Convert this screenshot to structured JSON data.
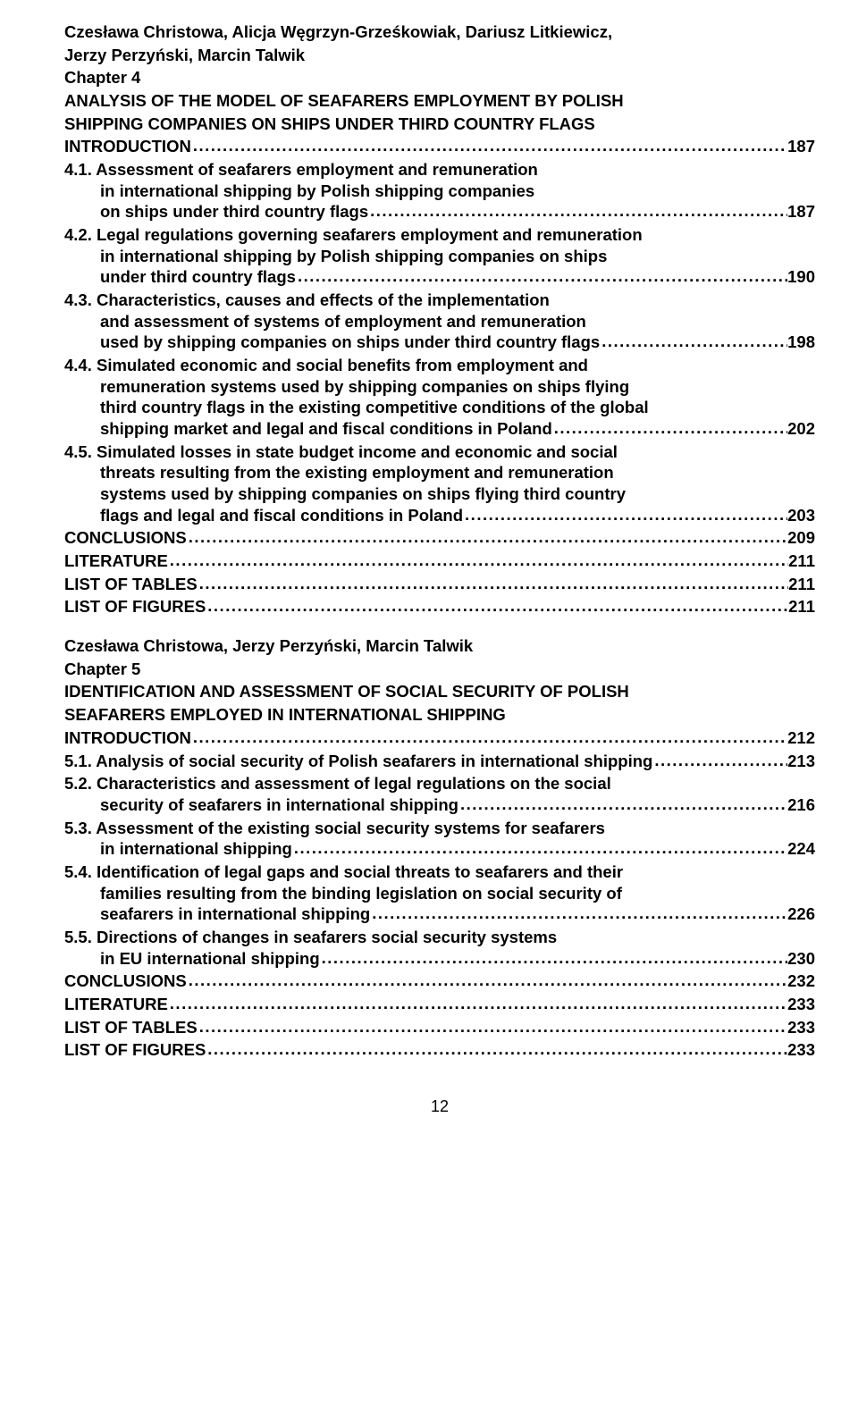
{
  "page_number": "12",
  "chapter4": {
    "authors_line1": "Czesława Christowa, Alicja Węgrzyn-Grześkowiak, Dariusz Litkiewicz,",
    "authors_line2": "Jerzy Perzyński, Marcin Talwik",
    "chapter_label": "Chapter 4",
    "title_line1": "ANALYSIS OF THE MODEL OF SEAFARERS EMPLOYMENT BY POLISH",
    "title_line2": "SHIPPING COMPANIES ON SHIPS UNDER THIRD COUNTRY FLAGS",
    "entries": [
      {
        "lines": [
          "INTRODUCTION"
        ],
        "page": "187",
        "indent": false
      },
      {
        "lines": [
          "4.1. Assessment of seafarers employment and remuneration",
          "in international shipping by Polish shipping companies",
          "on ships under third country flags"
        ],
        "page": "187",
        "indent": true
      },
      {
        "lines": [
          "4.2. Legal regulations governing seafarers employment and remuneration",
          "in international shipping by Polish shipping companies on ships",
          "under third country flags"
        ],
        "page": "190",
        "indent": true
      },
      {
        "lines": [
          "4.3. Characteristics, causes and effects of the implementation",
          "and assessment of systems of employment and remuneration",
          "used by shipping companies on ships under third country flags"
        ],
        "page": "198",
        "indent": true
      },
      {
        "lines": [
          "4.4. Simulated economic and social benefits from employment and",
          "remuneration systems used by shipping companies on ships flying",
          "third country flags in the existing competitive conditions of the global",
          "shipping market and legal and fiscal conditions in Poland"
        ],
        "page": "202",
        "indent": true
      },
      {
        "lines": [
          "4.5. Simulated losses in state budget income and economic and social",
          "threats resulting from the existing employment and remuneration",
          "systems used by shipping companies on ships flying third country",
          "flags and legal and fiscal conditions in Poland"
        ],
        "page": "203",
        "indent": true
      },
      {
        "lines": [
          "CONCLUSIONS"
        ],
        "page": "209",
        "indent": false
      },
      {
        "lines": [
          "LITERATURE"
        ],
        "page": "211",
        "indent": false
      },
      {
        "lines": [
          "LIST OF TABLES"
        ],
        "page": "211",
        "indent": false
      },
      {
        "lines": [
          "LIST OF FIGURES"
        ],
        "page": "211",
        "indent": false
      }
    ]
  },
  "chapter5": {
    "authors_line1": "Czesława Christowa, Jerzy Perzyński, Marcin Talwik",
    "chapter_label": "Chapter 5",
    "title_line1": "IDENTIFICATION AND ASSESSMENT OF SOCIAL SECURITY OF POLISH",
    "title_line2": "SEAFARERS EMPLOYED IN INTERNATIONAL SHIPPING",
    "entries": [
      {
        "lines": [
          "INTRODUCTION"
        ],
        "page": "212",
        "indent": false
      },
      {
        "lines": [
          "5.1. Analysis of social security of Polish seafarers in international shipping"
        ],
        "page": "213",
        "indent": true
      },
      {
        "lines": [
          "5.2. Characteristics and assessment of legal regulations on the social",
          "security of seafarers in international shipping"
        ],
        "page": "216",
        "indent": true
      },
      {
        "lines": [
          "5.3. Assessment of the existing social security systems for seafarers",
          "in international shipping"
        ],
        "page": "224",
        "indent": true
      },
      {
        "lines": [
          "5.4. Identification of legal gaps and social threats to seafarers and their",
          "families resulting from the binding legislation on social security of",
          "seafarers in international shipping"
        ],
        "page": "226",
        "indent": true
      },
      {
        "lines": [
          "5.5. Directions of changes in seafarers social security systems",
          "in EU international shipping"
        ],
        "page": "230",
        "indent": true
      },
      {
        "lines": [
          "CONCLUSIONS"
        ],
        "page": "232",
        "indent": false
      },
      {
        "lines": [
          "LITERATURE"
        ],
        "page": "233",
        "indent": false
      },
      {
        "lines": [
          "LIST OF TABLES"
        ],
        "page": "233",
        "indent": false
      },
      {
        "lines": [
          "LIST OF FIGURES"
        ],
        "page": "233",
        "indent": false
      }
    ]
  }
}
